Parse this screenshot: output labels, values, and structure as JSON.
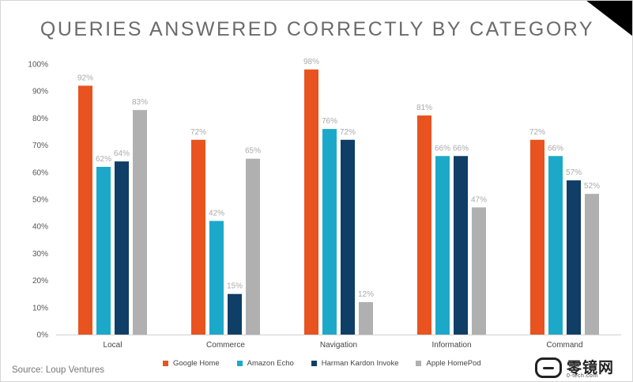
{
  "chart_data": {
    "type": "bar",
    "title": "QUERIES ANSWERED CORRECTLY BY CATEGORY",
    "categories": [
      "Local",
      "Commerce",
      "Navigation",
      "Information",
      "Command"
    ],
    "series": [
      {
        "name": "Google Home",
        "color": "#e8531f",
        "values": [
          92,
          72,
          98,
          81,
          72
        ]
      },
      {
        "name": "Amazon Echo",
        "color": "#1ca9c9",
        "values": [
          62,
          42,
          76,
          66,
          66
        ]
      },
      {
        "name": "Harman Kardon Invoke",
        "color": "#0f3e66",
        "values": [
          64,
          15,
          72,
          66,
          57
        ]
      },
      {
        "name": "Apple HomePod",
        "color": "#b0b0b0",
        "values": [
          83,
          65,
          12,
          47,
          52
        ]
      }
    ],
    "ylim": [
      0,
      100
    ],
    "yticks": [
      "0%",
      "10%",
      "20%",
      "30%",
      "40%",
      "50%",
      "60%",
      "70%",
      "80%",
      "90%",
      "100%"
    ],
    "value_suffix": "%",
    "xlabel": "",
    "ylabel": "",
    "legend_position": "bottom",
    "grid": false
  },
  "source": "Source: Loup Ventures",
  "watermark": {
    "name": "零镜网",
    "url": "0-tech.com"
  }
}
